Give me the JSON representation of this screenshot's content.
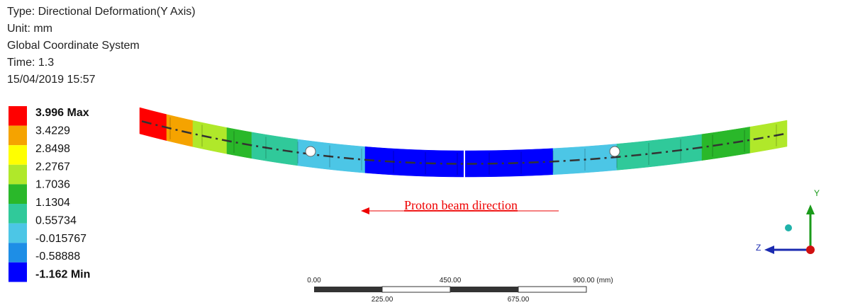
{
  "header": {
    "lines": [
      "Type: Directional Deformation(Y Axis)",
      "Unit: mm",
      "Global Coordinate System",
      "Time: 1.3",
      "15/04/2019 15:57"
    ]
  },
  "legend": {
    "labels": [
      "3.996 Max",
      "3.4229",
      "2.8498",
      "2.2767",
      "1.7036",
      "1.1304",
      "0.55734",
      "-0.015767",
      "-0.58888",
      "-1.162 Min"
    ],
    "colors": [
      "#ff0000",
      "#f5a300",
      "#ffff00",
      "#b0e82a",
      "#2ab82a",
      "#30c99a",
      "#4cc6e6",
      "#1e8ee6",
      "#0000ff"
    ]
  },
  "annotation": "Proton beam direction",
  "scale_bar": {
    "top_labels": [
      "0.00",
      "450.00",
      "900.00 (mm)"
    ],
    "bottom_labels": [
      "225.00",
      "675.00"
    ]
  },
  "triad": {
    "y_label": "Y",
    "z_label": "Z"
  }
}
